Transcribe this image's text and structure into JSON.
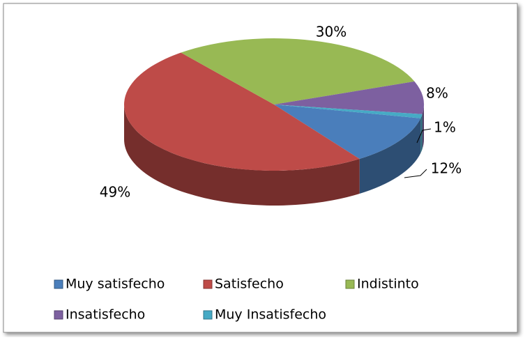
{
  "chart_data": {
    "type": "pie",
    "categories": [
      "Muy satisfecho",
      "Satisfecho",
      "Indistinto",
      "Insatisfecho",
      "Muy Insatisfecho"
    ],
    "values": [
      12,
      49,
      30,
      8,
      1
    ],
    "value_labels": [
      "12%",
      "49%",
      "30%",
      "8%",
      "1%"
    ],
    "colors": [
      "#4a7ebb",
      "#be4b48",
      "#98b954",
      "#7d60a0",
      "#46aac5"
    ],
    "legend": "bottom"
  }
}
